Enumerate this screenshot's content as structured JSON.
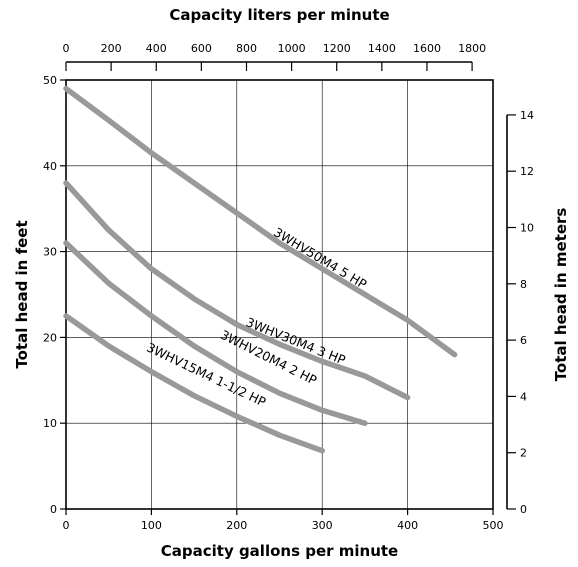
{
  "chart_data": {
    "type": "line",
    "title": "",
    "xlabel": "Capacity gallons per minute",
    "ylabel": "Total head in feet",
    "x2label": "Capacity liters per minute",
    "y2label": "Total head in meters",
    "xlim": [
      0,
      500
    ],
    "ylim": [
      0,
      50
    ],
    "x2lim": [
      0,
      1892.7
    ],
    "y2lim": [
      0,
      15.24
    ],
    "xticks": [
      0,
      100,
      200,
      300,
      400,
      500
    ],
    "yticks": [
      0,
      10,
      20,
      30,
      40,
      50
    ],
    "x2ticks": [
      0,
      200,
      400,
      600,
      800,
      1000,
      1200,
      1400,
      1600,
      1800
    ],
    "y2ticks": [
      0,
      2,
      4,
      6,
      8,
      10,
      12,
      14
    ],
    "grid": true,
    "series": [
      {
        "name": "3WHV50M4 5 HP",
        "x": [
          0,
          50,
          100,
          150,
          200,
          250,
          300,
          350,
          400,
          455
        ],
        "y": [
          49,
          45.3,
          41.5,
          38,
          34.5,
          31,
          28,
          25,
          22,
          18
        ],
        "label_pos": {
          "x": 295,
          "y": 28.8
        }
      },
      {
        "name": "3WHV30M4 3 HP",
        "x": [
          0,
          50,
          100,
          150,
          200,
          250,
          300,
          350,
          380,
          400
        ],
        "y": [
          38,
          32.5,
          28,
          24.5,
          21.5,
          19.2,
          17.2,
          15.5,
          14,
          13
        ],
        "label_pos": {
          "x": 267,
          "y": 19.1
        }
      },
      {
        "name": "3WHV20M4 2 HP",
        "x": [
          0,
          50,
          100,
          150,
          200,
          250,
          300,
          350
        ],
        "y": [
          31,
          26.3,
          22.5,
          19,
          16,
          13.5,
          11.5,
          10
        ],
        "label_pos": {
          "x": 235,
          "y": 17.2
        }
      },
      {
        "name": "3WHV15M4 1-1/2 HP",
        "x": [
          0,
          50,
          100,
          150,
          200,
          250,
          300
        ],
        "y": [
          22.5,
          19,
          16,
          13.2,
          10.8,
          8.6,
          6.8
        ],
        "label_pos": {
          "x": 162,
          "y": 15.2
        }
      }
    ]
  }
}
